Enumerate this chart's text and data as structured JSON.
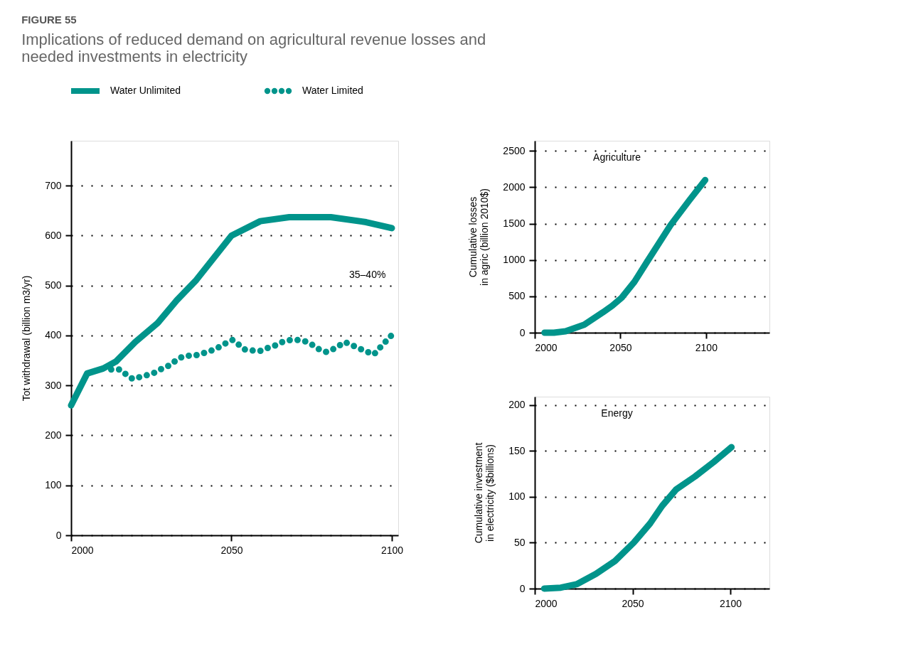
{
  "chart_data": [
    {
      "type": "line",
      "title": "FIGURE 55",
      "subtitle": "Implications of reduced demand on agricultural revenue losses and\nneeded investments in electricity",
      "ylabel": "Tot withdrawal (billion m3/yr)",
      "xlim": [
        2000,
        2102
      ],
      "xticks": [
        2000,
        2050,
        2100
      ],
      "ylim": [
        0,
        790
      ],
      "yticks": [
        0,
        100,
        200,
        300,
        400,
        500,
        600,
        700
      ],
      "grid": "y",
      "legend": "top left",
      "annotations": [
        "35–40%"
      ],
      "series": [
        {
          "name": "Water Unlimited",
          "color": "#00948b",
          "line_style": "solid",
          "x": [
            2000,
            2005,
            2010,
            2014,
            2020,
            2027,
            2033,
            2039,
            2050,
            2059,
            2068,
            2081,
            2092,
            2100
          ],
          "values": [
            260,
            324,
            334,
            348,
            387,
            425,
            471,
            511,
            600,
            629,
            637,
            637,
            627,
            615
          ]
        },
        {
          "name": "Water Limited",
          "color": "#00948b",
          "line_style": "dotted",
          "x": [
            2012.5,
            2015.1,
            2017.2,
            2019.2,
            2021.5,
            2023.9,
            2026.2,
            2028.4,
            2030.6,
            2032.7,
            2034.8,
            2037.2,
            2039.5,
            2041.9,
            2044.3,
            2046.5,
            2048.6,
            2050.3,
            2052.2,
            2054.2,
            2056.6,
            2058.9,
            2061.3,
            2063.6,
            2065.9,
            2068.3,
            2070.8,
            2073.2,
            2075.3,
            2077.4,
            2079.6,
            2081.8,
            2083.9,
            2085.3,
            2087.5,
            2089.9,
            2092.1,
            2094.4,
            2096.2,
            2098.1,
            2100
          ],
          "values": [
            332,
            332,
            322,
            313,
            317,
            321,
            326,
            334,
            340,
            350,
            358,
            360,
            361,
            366,
            371,
            378,
            386,
            391,
            382,
            372,
            370,
            369,
            375,
            380,
            387,
            391,
            391,
            388,
            381,
            372,
            367,
            373,
            381,
            387,
            381,
            374,
            368,
            362,
            375,
            388,
            401
          ]
        }
      ]
    },
    {
      "type": "line",
      "title": "Agriculture",
      "ylabel": "Cumulative losses\nin agric (billion 2010$)",
      "xlim": [
        2000,
        2137
      ],
      "xticks": [
        2000,
        2050,
        2100
      ],
      "ylim": [
        0,
        2640
      ],
      "yticks": [
        0,
        500,
        1000,
        1500,
        2000,
        2500
      ],
      "grid": "y",
      "series": [
        {
          "color": "#00948b",
          "x": [
            2005.7,
            2011.2,
            2018,
            2028.9,
            2039.8,
            2045.2,
            2050.7,
            2058.2,
            2065.7,
            2079.3,
            2090.2,
            2099.5
          ],
          "line_style": "solid",
          "values": [
            0,
            0,
            20,
            110,
            280,
            370,
            480,
            700,
            980,
            1480,
            1820,
            2100
          ]
        }
      ]
    },
    {
      "type": "line",
      "title": "Energy",
      "ylabel": "Cumulative investment\nin electricity ($billions)",
      "xlim": [
        2000,
        2120
      ],
      "xticks": [
        2000,
        2050,
        2100
      ],
      "ylim": [
        0,
        209
      ],
      "yticks": [
        0,
        50,
        100,
        150,
        200
      ],
      "grid": "y",
      "series": [
        {
          "color": "#00948b",
          "x": [
            2004.8,
            2013.3,
            2021.7,
            2031.3,
            2041,
            2050.6,
            2059,
            2065.1,
            2072.3,
            2081.9,
            2091.6,
            2100.6
          ],
          "line_style": "solid",
          "values": [
            0,
            1,
            5,
            16,
            30,
            50,
            71,
            90,
            108,
            122,
            138,
            154
          ]
        }
      ]
    }
  ]
}
